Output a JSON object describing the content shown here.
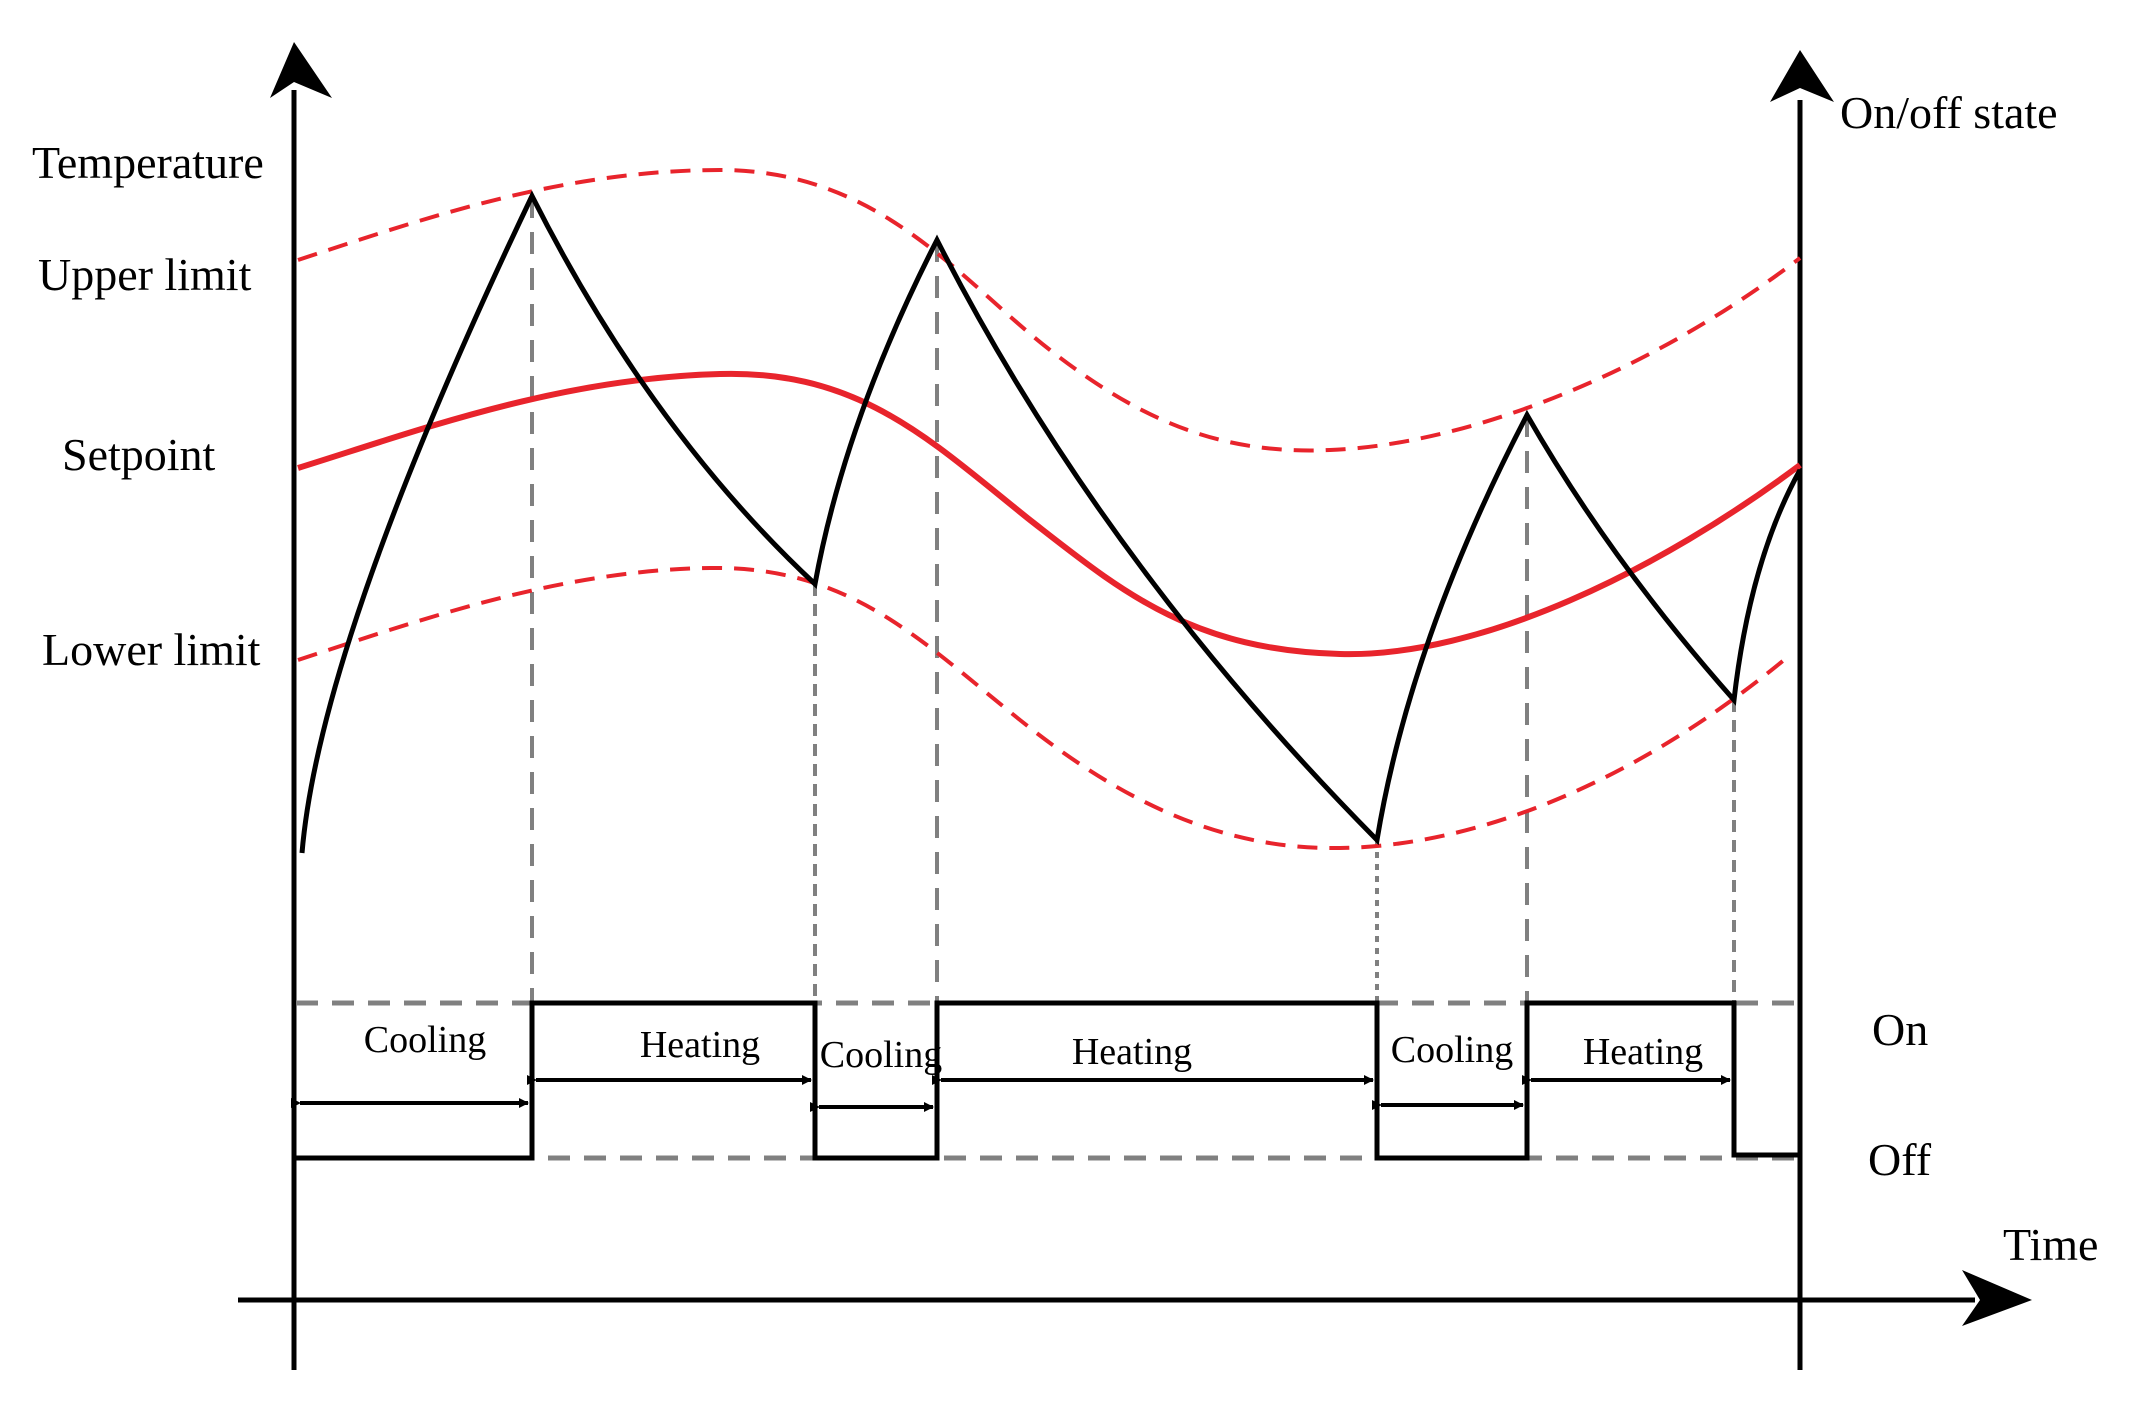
{
  "labels": {
    "temperature": "Temperature",
    "upper_limit": "Upper limit",
    "setpoint": "Setpoint",
    "lower_limit": "Lower limit",
    "on_off_state": "On/off state",
    "on": "On",
    "off": "Off",
    "time": "Time"
  },
  "segments": [
    {
      "label": "Cooling"
    },
    {
      "label": "Heating"
    },
    {
      "label": "Cooling"
    },
    {
      "label": "Heating"
    },
    {
      "label": "Cooling"
    },
    {
      "label": "Heating"
    }
  ],
  "colors": {
    "axis": "#000000",
    "temperature_curve": "#000000",
    "setpoint": "#e8242c",
    "limits": "#e8242c",
    "guides": "#808080"
  }
}
